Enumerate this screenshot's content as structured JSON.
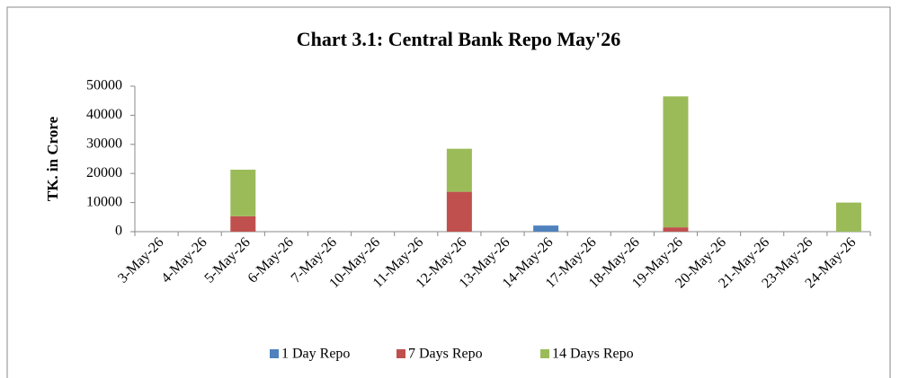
{
  "chart_data": {
    "type": "bar",
    "stacked": true,
    "title": "Chart 3.1: Central Bank Repo May'26",
    "y_label": "TK. in Crore",
    "categories": [
      "3-May-26",
      "4-May-26",
      "5-May-26",
      "6-May-26",
      "7-May-26",
      "10-May-26",
      "11-May-26",
      "12-May-26",
      "13-May-26",
      "14-May-26",
      "17-May-26",
      "18-May-26",
      "19-May-26",
      "20-May-26",
      "21-May-26",
      "23-May-26",
      "24-May-26"
    ],
    "series": [
      {
        "name": "1 Day Repo",
        "color": "#4f81bd",
        "values": [
          0,
          0,
          0,
          0,
          0,
          0,
          0,
          0,
          0,
          2100,
          0,
          0,
          0,
          0,
          0,
          0,
          0
        ]
      },
      {
        "name": "7 Days Repo",
        "color": "#c0504d",
        "values": [
          0,
          0,
          5300,
          0,
          0,
          0,
          0,
          13700,
          0,
          0,
          0,
          0,
          1500,
          0,
          0,
          0,
          0
        ]
      },
      {
        "name": "14 Days Repo",
        "color": "#9bbb59",
        "values": [
          0,
          0,
          16000,
          0,
          0,
          0,
          0,
          14800,
          0,
          0,
          0,
          0,
          45000,
          0,
          0,
          0,
          10000
        ]
      }
    ],
    "ylim": [
      0,
      50000
    ],
    "yticks": [
      0,
      10000,
      20000,
      30000,
      40000,
      50000
    ],
    "legend": "bottom"
  }
}
